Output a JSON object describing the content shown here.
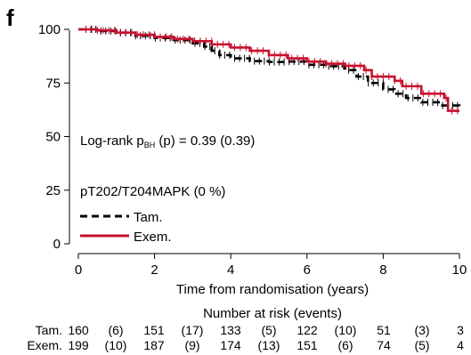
{
  "panel_label": "f",
  "chart_data": {
    "type": "line",
    "subtype": "kaplan-meier",
    "xlabel": "Time from randomisation (years)",
    "ylabel": "",
    "xlim": [
      0,
      10
    ],
    "ylim": [
      0,
      100
    ],
    "x_ticks": [
      0,
      2,
      4,
      6,
      8,
      10
    ],
    "y_ticks": [
      0,
      25,
      50,
      75,
      100
    ],
    "grid": false,
    "annotation": {
      "prefix": "Log-rank p",
      "subscript": "BH",
      "suffix": " (p) = 0.39 (0.39)"
    },
    "marker_label": "pT202/T204MAPK (0 %)",
    "legend_position": "left-middle",
    "series": [
      {
        "name": "Tam.",
        "color": "#000000",
        "dash": "dashed",
        "points": [
          [
            0,
            100
          ],
          [
            0.5,
            99.2
          ],
          [
            1,
            98.5
          ],
          [
            1.5,
            97
          ],
          [
            2,
            96
          ],
          [
            2.5,
            95
          ],
          [
            3,
            93.5
          ],
          [
            3.3,
            92
          ],
          [
            3.5,
            90
          ],
          [
            3.7,
            88
          ],
          [
            4,
            86.5
          ],
          [
            4.5,
            85.2
          ],
          [
            5,
            84.8
          ],
          [
            5.5,
            85
          ],
          [
            6,
            83.5
          ],
          [
            6.5,
            82.8
          ],
          [
            7,
            81
          ],
          [
            7.3,
            78
          ],
          [
            7.6,
            75
          ],
          [
            8,
            72
          ],
          [
            8.3,
            70
          ],
          [
            8.6,
            68
          ],
          [
            9,
            66
          ],
          [
            9.5,
            64.5
          ],
          [
            10,
            64
          ]
        ]
      },
      {
        "name": "Exem.",
        "color": "#c8102e",
        "dash": "solid",
        "points": [
          [
            0,
            100
          ],
          [
            0.5,
            99.5
          ],
          [
            1,
            98.5
          ],
          [
            1.5,
            97.5
          ],
          [
            2,
            96.5
          ],
          [
            2.5,
            95.5
          ],
          [
            3,
            94.5
          ],
          [
            3.5,
            93
          ],
          [
            4,
            91.5
          ],
          [
            4.5,
            90
          ],
          [
            5,
            88
          ],
          [
            5.5,
            86.5
          ],
          [
            6,
            85
          ],
          [
            6.5,
            84
          ],
          [
            7,
            83
          ],
          [
            7.5,
            81
          ],
          [
            7.7,
            78
          ],
          [
            8.3,
            76
          ],
          [
            8.5,
            73.5
          ],
          [
            9,
            70
          ],
          [
            9.6,
            68
          ],
          [
            9.7,
            62
          ],
          [
            10,
            62
          ]
        ]
      }
    ],
    "risk_table": {
      "title": "Number at risk (events)",
      "rows": [
        {
          "label": "Tam.",
          "cells": [
            "160",
            "(6)",
            "151",
            "(17)",
            "133",
            "(5)",
            "122",
            "(10)",
            "51",
            "(3)",
            "3"
          ]
        },
        {
          "label": "Exem.",
          "cells": [
            "199",
            "(10)",
            "187",
            "(9)",
            "174",
            "(13)",
            "151",
            "(6)",
            "74",
            "(5)",
            "4"
          ]
        }
      ]
    }
  }
}
